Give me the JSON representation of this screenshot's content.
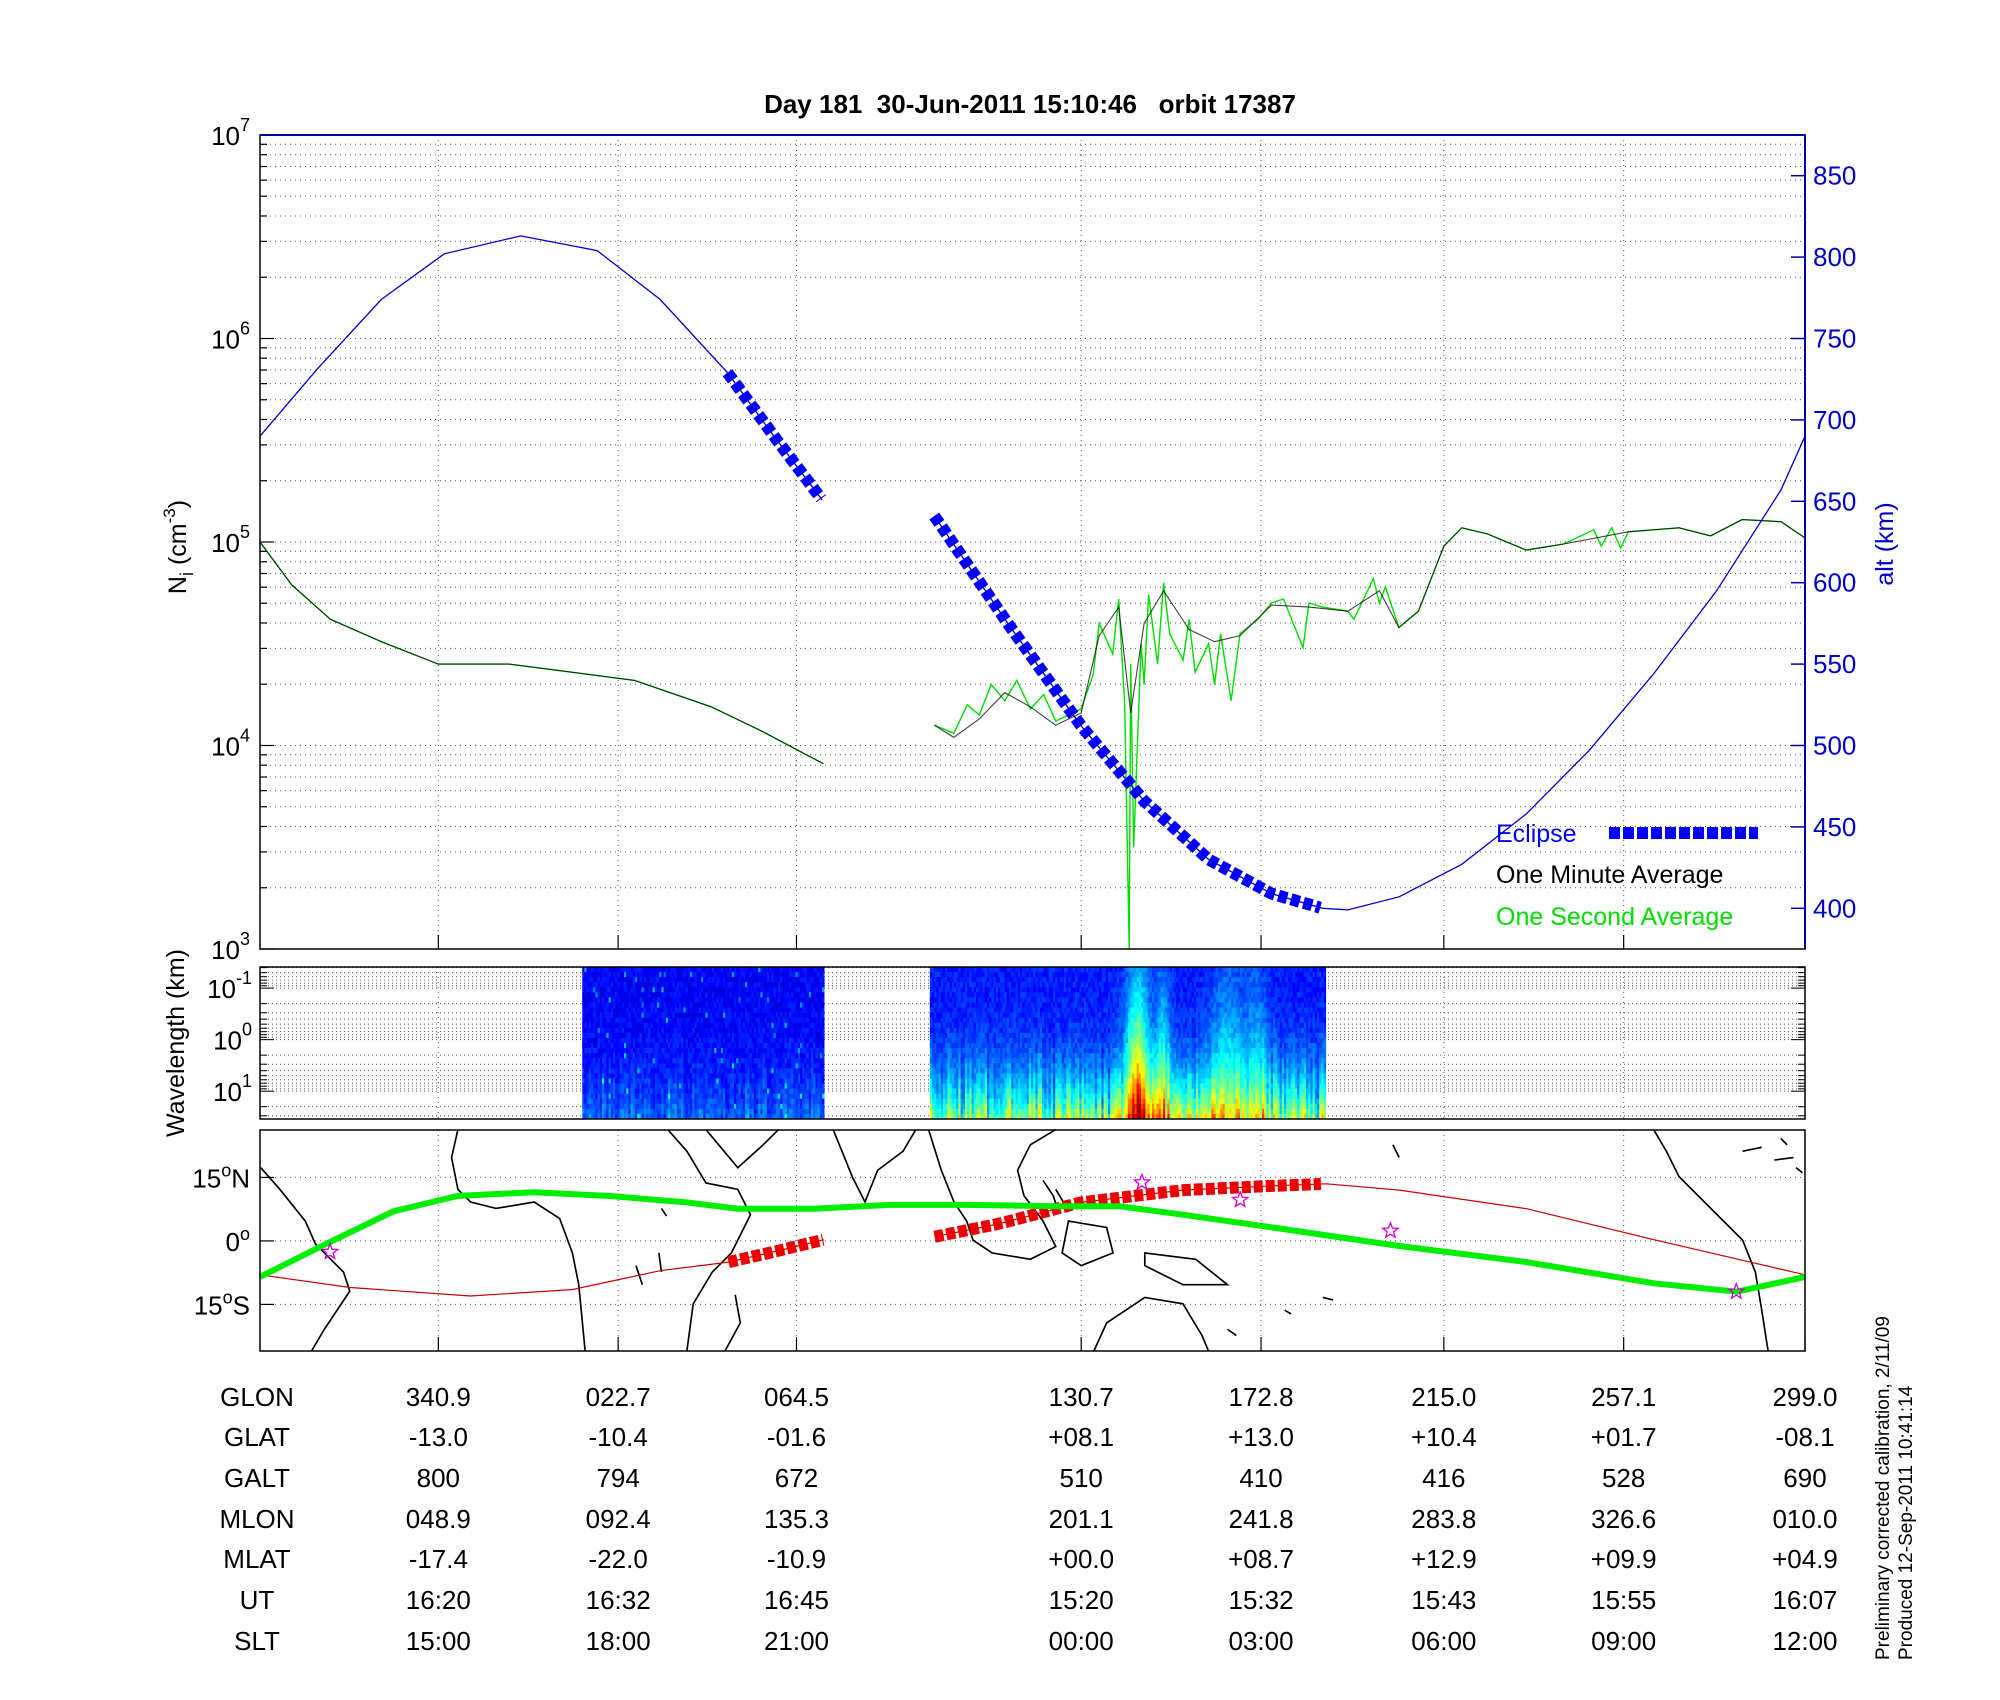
{
  "chart_data": [
    {
      "type": "line",
      "title": "Day 181  30-Jun-2011 15:10:46   orbit 17387",
      "xlabel": "",
      "x_units": "minutes from left edge of plot",
      "xlim": [
        0,
        103.1
      ],
      "ylabel": {
        "main": "N",
        "sub": "i",
        "unit_pre": " (cm",
        "unit_exp": "-3",
        "unit_post": ")"
      },
      "yscale": "log",
      "ylim_log10": [
        3,
        7
      ],
      "yticks": [
        {
          "base": "10",
          "exp": "7"
        },
        {
          "base": "10",
          "exp": "6"
        },
        {
          "base": "10",
          "exp": "5"
        },
        {
          "base": "10",
          "exp": "4"
        },
        {
          "base": "10",
          "exp": "3"
        }
      ],
      "ytick_log10": [
        7,
        6,
        5,
        4,
        3
      ],
      "y2label": "alt (km)",
      "y2lim": [
        375,
        875
      ],
      "y2ticks": [
        "850",
        "800",
        "750",
        "700",
        "650",
        "600",
        "550",
        "500",
        "450",
        "400"
      ],
      "y2tick_values": [
        850,
        800,
        750,
        700,
        650,
        600,
        550,
        500,
        450,
        400
      ],
      "xtick_minutes": [
        11.9,
        23.9,
        35.8,
        54.8,
        66.8,
        79.0,
        91.0,
        103.1
      ],
      "grid": true,
      "colors": {
        "alt": "#0000cc",
        "eclipse": "#0000ff",
        "minute": "#000000",
        "second": "#00dd00"
      },
      "legend": {
        "placement": "bottom-right",
        "eclipse": "Eclipse",
        "minute": "One Minute Average",
        "second": "One Second Average"
      },
      "series": [
        {
          "name": "alt",
          "axis": "right",
          "segments": [
            [
              [
                0,
                690
              ],
              [
                3.8,
                731
              ],
              [
                8.1,
                774
              ],
              [
                12.3,
                802
              ],
              [
                17.4,
                813
              ],
              [
                22.5,
                804
              ],
              [
                26.7,
                774
              ],
              [
                31.2,
                729
              ],
              [
                34.3,
                690
              ],
              [
                37.5,
                651
              ]
            ],
            [
              [
                45.0,
                641
              ],
              [
                49.9,
                575
              ],
              [
                54.8,
                512
              ],
              [
                59.0,
                466
              ],
              [
                63.3,
                430
              ],
              [
                67.5,
                409
              ],
              [
                70.9,
                400
              ],
              [
                72.6,
                399
              ],
              [
                76.0,
                407
              ],
              [
                80.2,
                427
              ],
              [
                84.5,
                458
              ],
              [
                88.7,
                497
              ],
              [
                93.0,
                544
              ],
              [
                97.2,
                595
              ],
              [
                101.5,
                657
              ],
              [
                103.1,
                690
              ]
            ]
          ]
        },
        {
          "name": "One Second Average",
          "axis": "left_log10",
          "segments": [
            [
              [
                0,
                5.0
              ],
              [
                2.1,
                4.79
              ],
              [
                4.7,
                4.62
              ],
              [
                8.1,
                4.51
              ],
              [
                11.9,
                4.4
              ],
              [
                16.6,
                4.4
              ],
              [
                20.8,
                4.36
              ],
              [
                25.0,
                4.32
              ],
              [
                30.1,
                4.19
              ],
              [
                33.5,
                4.07
              ],
              [
                37.6,
                3.91
              ]
            ],
            [
              [
                45.0,
                4.1
              ],
              [
                46.3,
                4.06
              ],
              [
                47.2,
                4.2
              ],
              [
                48.0,
                4.15
              ],
              [
                48.8,
                4.3
              ],
              [
                49.7,
                4.22
              ],
              [
                50.5,
                4.32
              ],
              [
                51.4,
                4.18
              ],
              [
                52.3,
                4.25
              ],
              [
                53.1,
                4.12
              ],
              [
                54.8,
                4.18
              ],
              [
                55.6,
                4.35
              ],
              [
                56.0,
                4.6
              ],
              [
                56.9,
                4.45
              ],
              [
                57.3,
                4.72
              ],
              [
                57.7,
                4.2
              ],
              [
                58.0,
                3.0
              ],
              [
                58.1,
                4.4
              ],
              [
                58.3,
                3.5
              ],
              [
                58.8,
                4.5
              ],
              [
                59.0,
                4.3
              ],
              [
                59.3,
                4.74
              ],
              [
                59.9,
                4.4
              ],
              [
                60.3,
                4.8
              ],
              [
                60.7,
                4.55
              ],
              [
                61.6,
                4.42
              ],
              [
                62.0,
                4.62
              ],
              [
                62.4,
                4.36
              ],
              [
                63.3,
                4.5
              ],
              [
                63.7,
                4.3
              ],
              [
                64.1,
                4.55
              ],
              [
                64.8,
                4.22
              ],
              [
                65.4,
                4.55
              ],
              [
                66.6,
                4.62
              ],
              [
                67.5,
                4.7
              ],
              [
                68.3,
                4.72
              ],
              [
                69.6,
                4.48
              ],
              [
                70.0,
                4.7
              ],
              [
                70.9,
                4.68
              ],
              [
                72.6,
                4.66
              ],
              [
                73.0,
                4.62
              ],
              [
                74.3,
                4.82
              ],
              [
                74.7,
                4.7
              ],
              [
                75.1,
                4.78
              ],
              [
                76.0,
                4.58
              ],
              [
                77.3,
                4.66
              ],
              [
                79.0,
                4.98
              ],
              [
                80.2,
                5.07
              ],
              [
                81.9,
                5.04
              ],
              [
                84.5,
                4.96
              ],
              [
                87.0,
                4.99
              ],
              [
                89.0,
                5.06
              ],
              [
                89.5,
                4.98
              ],
              [
                90.2,
                5.07
              ],
              [
                90.8,
                4.97
              ],
              [
                91.3,
                5.05
              ],
              [
                94.7,
                5.07
              ],
              [
                96.8,
                5.03
              ],
              [
                98.9,
                5.11
              ],
              [
                101.5,
                5.1
              ],
              [
                103.1,
                5.02
              ]
            ]
          ]
        },
        {
          "name": "One Minute Average",
          "axis": "left_log10",
          "segments": [
            [
              [
                0,
                5.0
              ],
              [
                2.1,
                4.79
              ],
              [
                4.7,
                4.62
              ],
              [
                8.1,
                4.51
              ],
              [
                11.9,
                4.4
              ],
              [
                16.6,
                4.4
              ],
              [
                20.8,
                4.36
              ],
              [
                25.0,
                4.32
              ],
              [
                30.1,
                4.19
              ],
              [
                33.5,
                4.07
              ],
              [
                37.6,
                3.91
              ]
            ],
            [
              [
                45.0,
                4.1
              ],
              [
                46.3,
                4.04
              ],
              [
                48.0,
                4.13
              ],
              [
                49.7,
                4.26
              ],
              [
                51.4,
                4.19
              ],
              [
                53.1,
                4.1
              ],
              [
                54.8,
                4.16
              ],
              [
                56.0,
                4.54
              ],
              [
                57.3,
                4.68
              ],
              [
                58.1,
                4.16
              ],
              [
                59.0,
                4.6
              ],
              [
                60.3,
                4.76
              ],
              [
                62.0,
                4.57
              ],
              [
                63.7,
                4.51
              ],
              [
                65.4,
                4.54
              ],
              [
                67.5,
                4.69
              ],
              [
                70.0,
                4.68
              ],
              [
                72.6,
                4.66
              ],
              [
                74.7,
                4.76
              ],
              [
                76.0,
                4.58
              ],
              [
                77.3,
                4.66
              ],
              [
                79.0,
                4.98
              ],
              [
                80.2,
                5.07
              ],
              [
                81.9,
                5.04
              ],
              [
                84.5,
                4.96
              ],
              [
                87.0,
                4.99
              ],
              [
                91.3,
                5.05
              ],
              [
                94.7,
                5.07
              ],
              [
                96.8,
                5.03
              ],
              [
                98.9,
                5.11
              ],
              [
                101.5,
                5.1
              ],
              [
                103.1,
                5.02
              ]
            ]
          ]
        }
      ],
      "eclipse_intervals": [
        [
          31.2,
          37.5
        ],
        [
          45.0,
          70.9
        ]
      ]
    },
    {
      "type": "heatmap",
      "ylabel": "Wavelength (km)",
      "yscale": "log",
      "ylim_log10": [
        -1.41,
        1.54
      ],
      "yaxis_reversed": true,
      "yticks": [
        {
          "base": "10",
          "exp": "-1"
        },
        {
          "base": "10",
          "exp": "0"
        },
        {
          "base": "10",
          "exp": "1"
        }
      ],
      "ytick_log10": [
        -1,
        0,
        1
      ],
      "colormap": "jet",
      "blocks": [
        {
          "start": 21.5,
          "end": 37.6,
          "level": 0.12,
          "depth_gain": 0.12
        },
        {
          "start": 44.7,
          "end": 71.1,
          "level": 0.15,
          "depth_gain": 0.38
        }
      ],
      "hotspots": [
        {
          "center": 58.5,
          "width": 0.8,
          "amp": 0.55
        },
        {
          "center": 60.2,
          "width": 0.5,
          "amp": 0.3
        },
        {
          "center": 64.5,
          "width": 1.2,
          "amp": 0.25
        },
        {
          "center": 66.5,
          "width": 0.8,
          "amp": 0.2
        }
      ]
    },
    {
      "type": "map",
      "lon_range_unwrapped": [
        299,
        659
      ],
      "lat_range": [
        -26,
        26.2
      ],
      "lat_ticks": [
        {
          "num": "15",
          "deg": "o",
          "hem": "N"
        },
        {
          "num": "0",
          "deg": "o",
          "hem": ""
        },
        {
          "num": "15",
          "deg": "o",
          "hem": "S"
        }
      ],
      "lat_tick_values": [
        15,
        0,
        -15
      ],
      "colors": {
        "dip_equator": "#00ee00",
        "orbit": "#cc0000",
        "eclipse": "#ee0000",
        "stars": "#cc00cc"
      },
      "dip_equator": [
        [
          299,
          -8.5
        ],
        [
          313.8,
          -1
        ],
        [
          330.1,
          7
        ],
        [
          345,
          10.6
        ],
        [
          362.8,
          11.5
        ],
        [
          380.6,
          10.6
        ],
        [
          398.4,
          9.1
        ],
        [
          410.2,
          7.6
        ],
        [
          428,
          7.6
        ],
        [
          445.8,
          8.5
        ],
        [
          463.6,
          8.5
        ],
        [
          484.4,
          8.2
        ],
        [
          499.2,
          8.2
        ],
        [
          514,
          6.2
        ],
        [
          534.8,
          3.2
        ],
        [
          564.5,
          -1.2
        ],
        [
          594.1,
          -5
        ],
        [
          623.8,
          -10
        ],
        [
          643.1,
          -12
        ],
        [
          659,
          -8.5
        ]
      ],
      "orbit_segments": [
        [
          [
            299,
            -8.0
          ],
          [
            320,
            -11
          ],
          [
            348,
            -13
          ],
          [
            371.7,
            -11.5
          ],
          [
            392.4,
            -7
          ],
          [
            408.2,
            -5
          ],
          [
            419,
            -2.5
          ],
          [
            430.4,
            0.3
          ]
        ],
        [
          [
            456.2,
            1
          ],
          [
            471,
            4
          ],
          [
            490.3,
            9.1
          ],
          [
            514,
            12
          ],
          [
            534.8,
            13
          ],
          [
            547.5,
            13.5
          ],
          [
            564.5,
            12
          ],
          [
            594.1,
            7.6
          ],
          [
            623.8,
            0.3
          ],
          [
            659,
            -8
          ]
        ]
      ],
      "eclipse_lon_intervals": [
        [
          408.2,
          430.4
        ],
        [
          456.2,
          547.5
        ]
      ],
      "stars": [
        [
          315.3,
          -2.6
        ],
        [
          504.5,
          13.8
        ],
        [
          527.4,
          9.7
        ],
        [
          562.4,
          2.4
        ],
        [
          643,
          -12
        ]
      ]
    }
  ],
  "table": {
    "rows": [
      {
        "label": "GLON",
        "values": [
          "340.9",
          "022.7",
          "064.5",
          "130.7",
          "172.8",
          "215.0",
          "257.1",
          "299.0"
        ]
      },
      {
        "label": "GLAT",
        "values": [
          "-13.0",
          "-10.4",
          "-01.6",
          "+08.1",
          "+13.0",
          "+10.4",
          "+01.7",
          "-08.1"
        ]
      },
      {
        "label": "GALT",
        "values": [
          "800",
          "794",
          "672",
          "510",
          "410",
          "416",
          "528",
          "690"
        ]
      },
      {
        "label": "MLON",
        "values": [
          "048.9",
          "092.4",
          "135.3",
          "201.1",
          "241.8",
          "283.8",
          "326.6",
          "010.0"
        ]
      },
      {
        "label": "MLAT",
        "values": [
          "-17.4",
          "-22.0",
          "-10.9",
          "+00.0",
          "+08.7",
          "+12.9",
          "+09.9",
          "+04.9"
        ]
      },
      {
        "label": "UT",
        "values": [
          "16:20",
          "16:32",
          "16:45",
          "15:20",
          "15:32",
          "15:43",
          "15:55",
          "16:07"
        ]
      },
      {
        "label": "SLT",
        "values": [
          "15:00",
          "18:00",
          "21:00",
          "00:00",
          "03:00",
          "06:00",
          "09:00",
          "12:00"
        ]
      }
    ]
  },
  "notes": {
    "calibration": "Preliminary corrected calibration, 2/11/09",
    "produced": "Produced 12-Sep-2011 10:41:14"
  }
}
